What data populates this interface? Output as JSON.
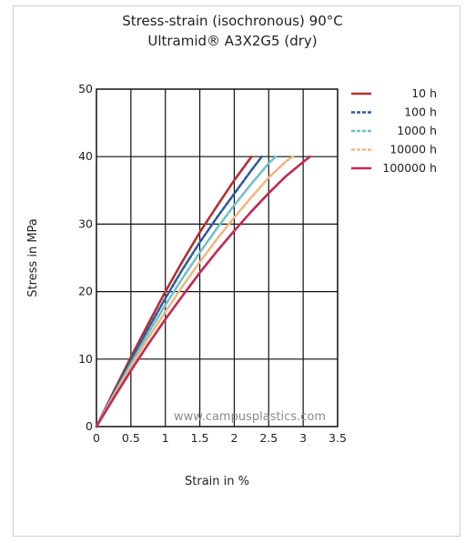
{
  "chart_data": {
    "type": "line",
    "title": "Stress-strain (isochronous) 90°C",
    "subtitle": "Ultramid® A3X2G5 (dry)",
    "xlabel": "Strain in %",
    "ylabel": "Stress in MPa",
    "xlim": [
      0,
      3.5
    ],
    "ylim": [
      0,
      50
    ],
    "xticks": [
      "0",
      "0.5",
      "1",
      "1.5",
      "2",
      "2.5",
      "3",
      "3.5"
    ],
    "yticks": [
      "0",
      "10",
      "20",
      "30",
      "40",
      "50"
    ],
    "grid": true,
    "legend_position": "top-right",
    "watermark": "www.campusplastics.com",
    "series": [
      {
        "name": "10 h",
        "color": "#b5302f",
        "dash": "solid",
        "x": [
          0,
          0.25,
          0.5,
          0.75,
          1.0,
          1.25,
          1.5,
          1.75,
          2.0,
          2.25
        ],
        "y": [
          0,
          5.2,
          10.3,
          15.2,
          20.0,
          24.5,
          28.8,
          32.7,
          36.5,
          40
        ]
      },
      {
        "name": "100 h",
        "color": "#2e5b9e",
        "dash": "dashed",
        "x": [
          0,
          0.25,
          0.5,
          0.75,
          1.0,
          1.25,
          1.5,
          1.75,
          2.0,
          2.25,
          2.4
        ],
        "y": [
          0,
          4.9,
          9.8,
          14.5,
          19.0,
          23.3,
          27.3,
          31.0,
          34.5,
          38.0,
          40
        ]
      },
      {
        "name": "1000 h",
        "color": "#6fc0c5",
        "dash": "dashed",
        "x": [
          0,
          0.25,
          0.5,
          0.75,
          1.0,
          1.25,
          1.5,
          1.75,
          2.0,
          2.25,
          2.5,
          2.6
        ],
        "y": [
          0,
          4.7,
          9.3,
          13.8,
          18.0,
          22.0,
          25.8,
          29.4,
          32.8,
          36.0,
          39.0,
          40
        ]
      },
      {
        "name": "10000 h",
        "color": "#f0b77e",
        "dash": "dashed",
        "x": [
          0,
          0.25,
          0.5,
          0.75,
          1.0,
          1.25,
          1.5,
          1.75,
          2.0,
          2.25,
          2.5,
          2.75,
          2.85
        ],
        "y": [
          0,
          4.5,
          8.9,
          13.1,
          17.0,
          20.8,
          24.4,
          27.8,
          31.0,
          34.0,
          36.9,
          39.3,
          40
        ]
      },
      {
        "name": "100000 h",
        "color": "#c42855",
        "dash": "solid",
        "x": [
          0,
          0.25,
          0.5,
          0.75,
          1.0,
          1.25,
          1.5,
          1.75,
          2.0,
          2.25,
          2.5,
          2.75,
          3.0,
          3.1
        ],
        "y": [
          0,
          4.2,
          8.3,
          12.2,
          15.9,
          19.4,
          22.8,
          26.0,
          29.0,
          31.9,
          34.6,
          37.1,
          39.2,
          40
        ]
      }
    ]
  }
}
